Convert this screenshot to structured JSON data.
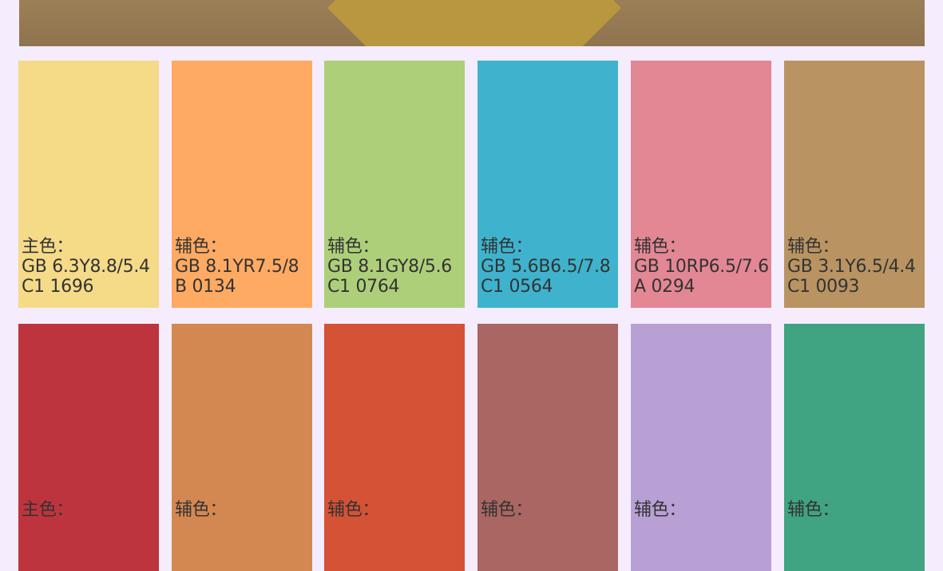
{
  "hero_image": {
    "alt": "yellow-furniture-on-carpet"
  },
  "rows": [
    [
      {
        "color": "#f5da88",
        "label": "主色：",
        "code": "GB 6.3Y8.8/5.4",
        "ref": "C1 1696"
      },
      {
        "color": "#ffaa63",
        "label": "辅色：",
        "code": "GB 8.1YR7.5/8",
        "ref": "B 0134"
      },
      {
        "color": "#aecf7a",
        "label": "辅色：",
        "code": "GB 8.1GY8/5.6",
        "ref": "C1 0764"
      },
      {
        "color": "#3fb3cd",
        "label": "辅色：",
        "code": "GB 5.6B6.5/7.8",
        "ref": "C1 0564"
      },
      {
        "color": "#e38794",
        "label": "辅色：",
        "code": "GB 10RP6.5/7.6",
        "ref": "A 0294"
      },
      {
        "color": "#b99462",
        "label": "辅色：",
        "code": "GB 3.1Y6.5/4.4",
        "ref": "C1 0093"
      }
    ],
    [
      {
        "color": "#be343e",
        "label": "主色："
      },
      {
        "color": "#d48851",
        "label": "辅色："
      },
      {
        "color": "#d45235",
        "label": "辅色："
      },
      {
        "color": "#aa6662",
        "label": "辅色："
      },
      {
        "color": "#b8a0d4",
        "label": "辅色："
      },
      {
        "color": "#40a381",
        "label": "辅色："
      }
    ]
  ]
}
